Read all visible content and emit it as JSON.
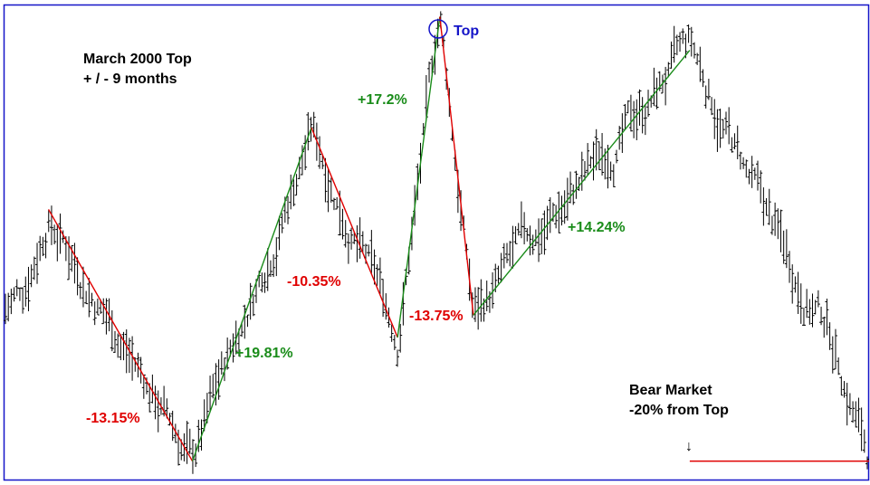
{
  "chart_data": {
    "type": "bar",
    "subtype": "ohlc",
    "title": "March 2000 Top",
    "subtitle": "+ / - 9 months",
    "axes_shown": false,
    "grid": false,
    "colors": {
      "frame": "#1414c8",
      "bars": "#000000",
      "decline": "#e00000",
      "advance": "#1a8c1a",
      "top_marker": "#1414c8"
    },
    "pivots": [
      {
        "x": 0.05,
        "y": 0.57,
        "type": "high"
      },
      {
        "x": 0.217,
        "y": 0.037,
        "type": "low"
      },
      {
        "x": 0.355,
        "y": 0.743,
        "type": "high"
      },
      {
        "x": 0.455,
        "y": 0.299,
        "type": "low"
      },
      {
        "x": 0.504,
        "y": 0.978,
        "type": "top"
      },
      {
        "x": 0.543,
        "y": 0.346,
        "type": "low"
      },
      {
        "x": 0.794,
        "y": 0.907,
        "type": "high"
      }
    ],
    "swings": [
      {
        "label": "-13.15%",
        "direction": "decline",
        "from": 0,
        "to": 1
      },
      {
        "label": "+19.81%",
        "direction": "advance",
        "from": 1,
        "to": 2
      },
      {
        "label": "-10.35%",
        "direction": "decline",
        "from": 2,
        "to": 3
      },
      {
        "label": "+17.2%",
        "direction": "advance",
        "from": 3,
        "to": 4
      },
      {
        "label": "-13.75%",
        "direction": "decline",
        "from": 4,
        "to": 5
      },
      {
        "label": "+14.24%",
        "direction": "advance",
        "from": 5,
        "to": 6
      }
    ],
    "annotations": {
      "top_label": "Top",
      "bear_line1": "Bear Market",
      "bear_line2": "-20% from Top",
      "bear_level": 0.037,
      "bear_start_x": 0.794,
      "arrow_glyph": "↓"
    }
  }
}
